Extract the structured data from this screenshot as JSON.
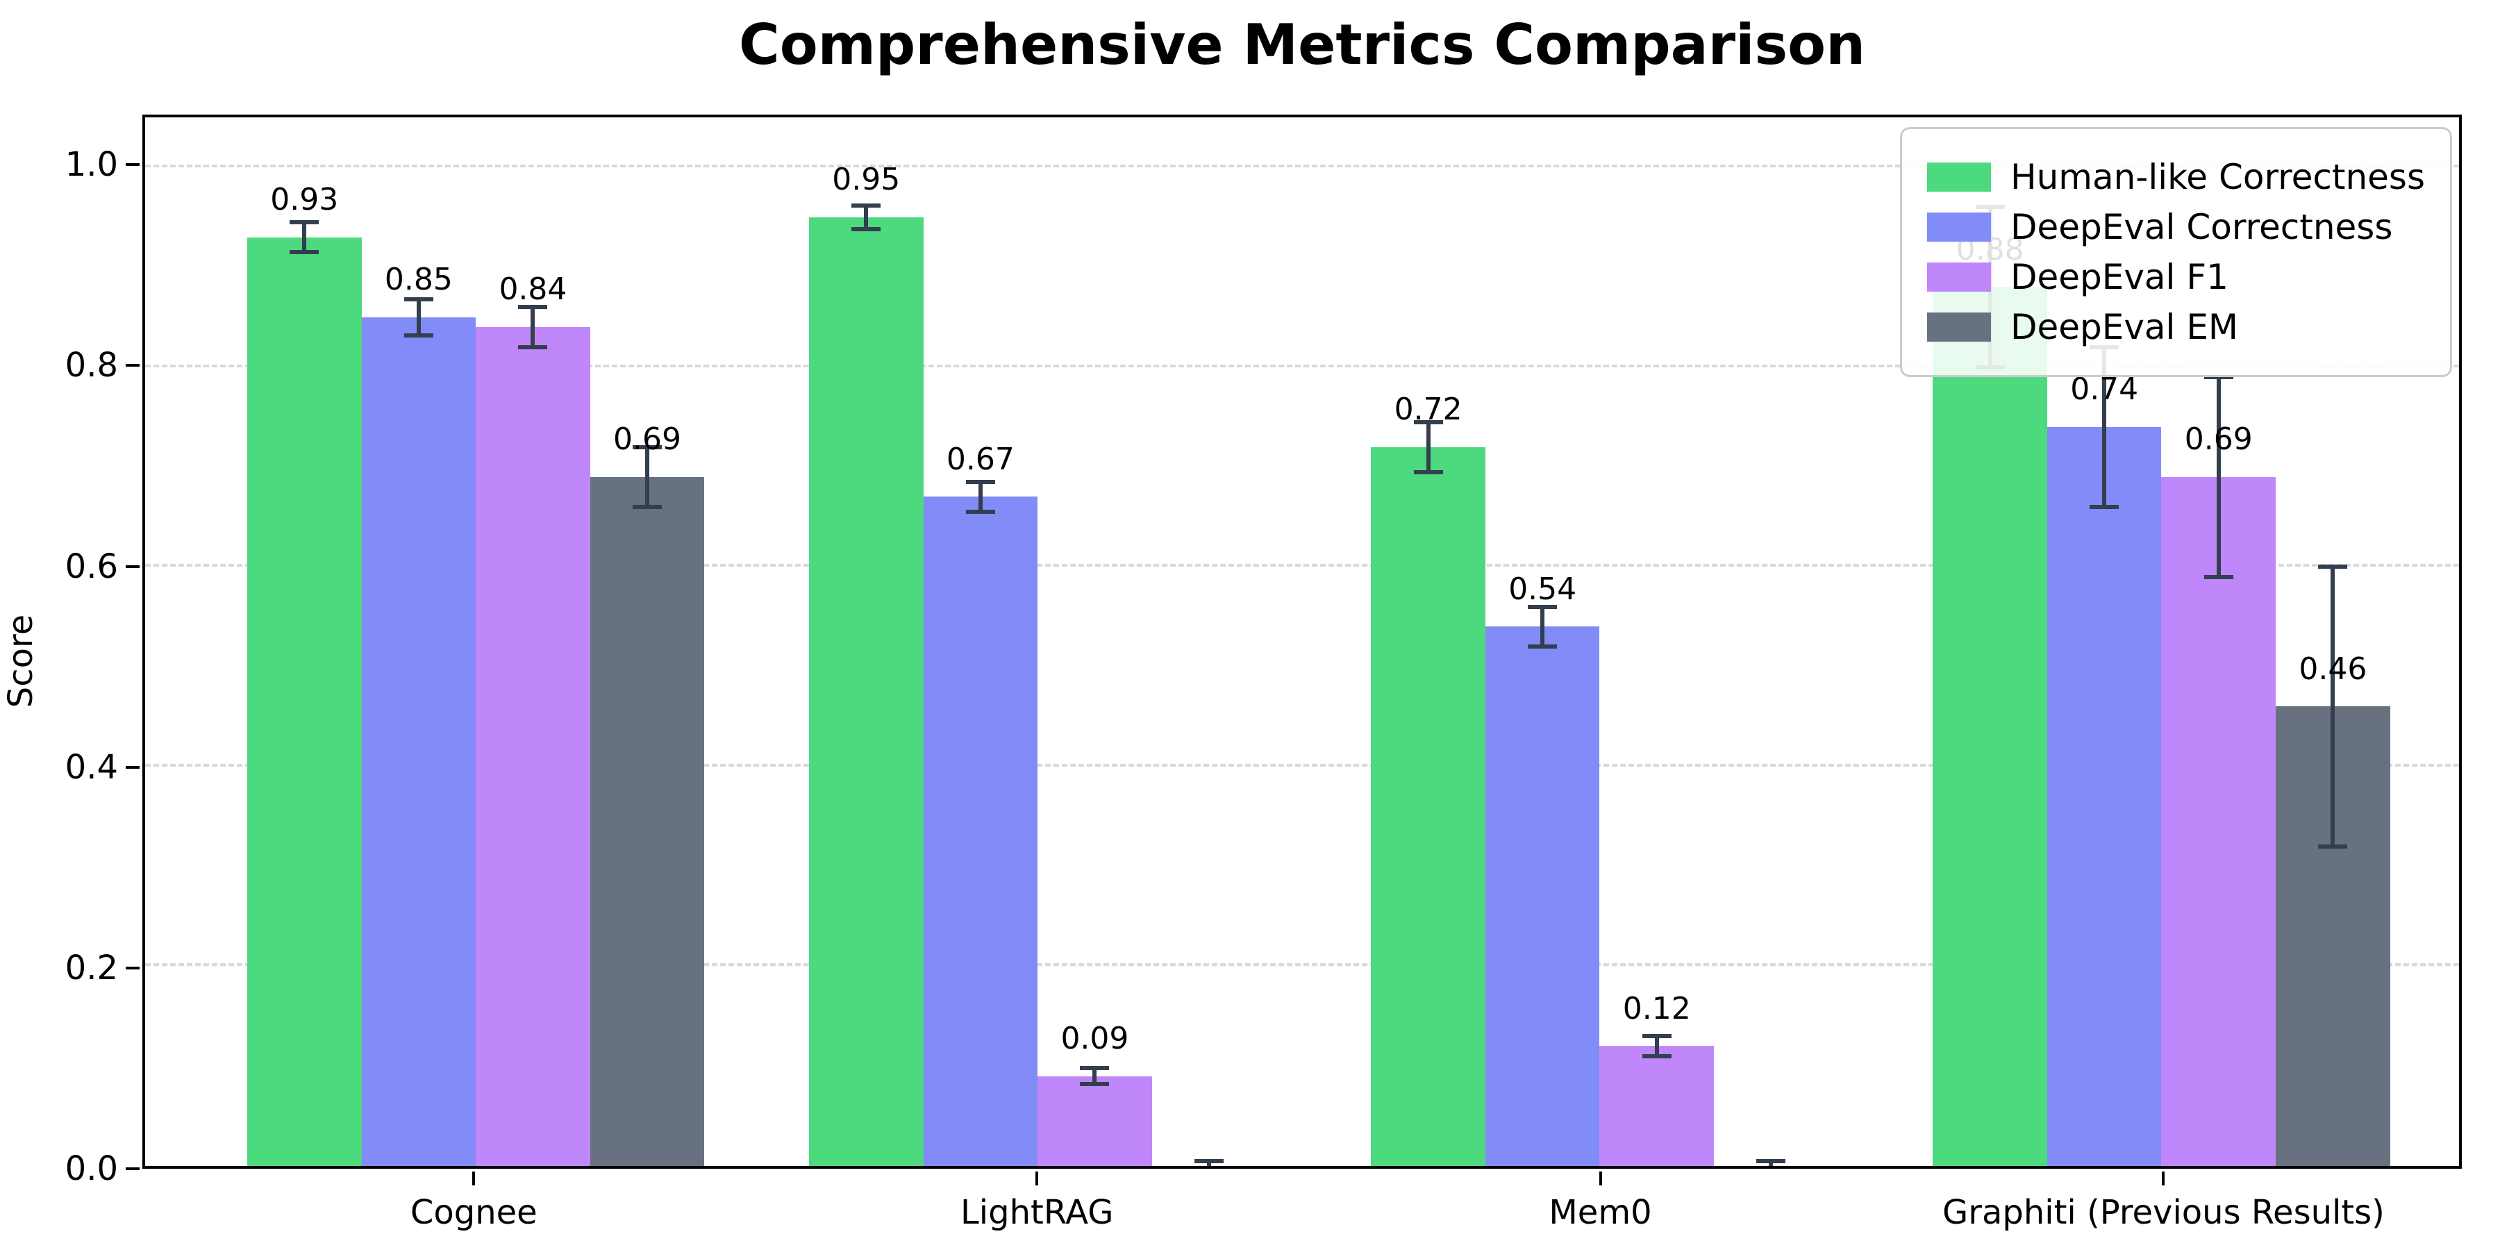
{
  "title": "Comprehensive Metrics Comparison",
  "chart_data": {
    "type": "bar",
    "title": "Comprehensive Metrics Comparison",
    "xlabel": "",
    "ylabel": "Score",
    "ylim": [
      0,
      1.05
    ],
    "yticks": [
      "0.0",
      "0.2",
      "0.4",
      "0.6",
      "0.8",
      "1.0"
    ],
    "ytick_values": [
      0.0,
      0.2,
      0.4,
      0.6,
      0.8,
      1.0
    ],
    "grid": "horizontal-dashed",
    "legend_position": "upper-right",
    "categories": [
      "Cognee",
      "LightRAG",
      "Mem0",
      "Graphiti (Previous Results)"
    ],
    "group_centers_pct": [
      14.29,
      38.57,
      62.86,
      87.14
    ],
    "group_width_pct": 19.76,
    "error_bar_color": "#333e4f",
    "gridline_color": "#d9d9d9",
    "series": [
      {
        "name": "Human-like Correctness",
        "color": "#4dd97e",
        "values": [
          0.93,
          0.95,
          0.72,
          0.88
        ],
        "errors": [
          0.015,
          0.012,
          0.025,
          0.08
        ],
        "labels": [
          "0.93",
          "0.95",
          "0.72",
          "0.88"
        ]
      },
      {
        "name": "DeepEval Correctness",
        "color": "#818cf8",
        "values": [
          0.85,
          0.67,
          0.54,
          0.74
        ],
        "errors": [
          0.018,
          0.015,
          0.02,
          0.08
        ],
        "labels": [
          "0.85",
          "0.67",
          "0.54",
          "0.74"
        ]
      },
      {
        "name": "DeepEval F1",
        "color": "#c087fa",
        "values": [
          0.84,
          0.09,
          0.12,
          0.69
        ],
        "errors": [
          0.02,
          0.008,
          0.01,
          0.1
        ],
        "labels": [
          "0.84",
          "0.09",
          "0.12",
          "0.69"
        ]
      },
      {
        "name": "DeepEval EM",
        "color": "#68717f",
        "values": [
          0.69,
          0.0,
          0.0,
          0.46
        ],
        "errors": [
          0.03,
          0.005,
          0.005,
          0.14
        ],
        "labels": [
          "0.69",
          "",
          "",
          "0.46"
        ]
      }
    ]
  }
}
